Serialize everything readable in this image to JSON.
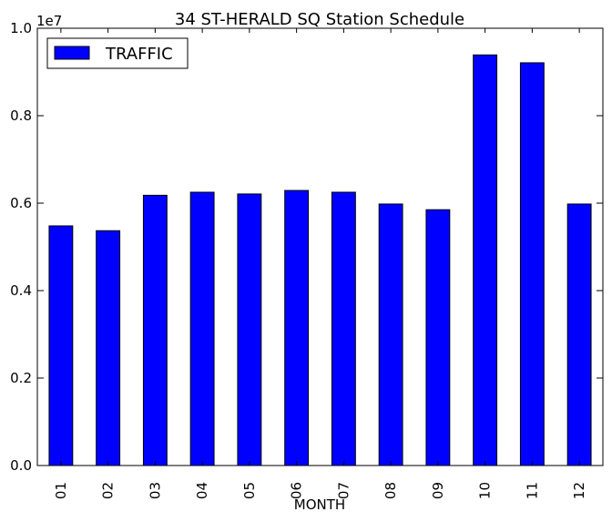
{
  "chart_data": {
    "type": "bar",
    "title": "34 ST-HERALD SQ Station Schedule",
    "xlabel": "MONTH",
    "ylabel": "",
    "offset_label": "1e7",
    "categories": [
      "01",
      "02",
      "03",
      "04",
      "05",
      "06",
      "07",
      "08",
      "09",
      "10",
      "11",
      "12"
    ],
    "y_ticks": [
      0.0,
      0.2,
      0.4,
      0.6,
      0.8,
      1.0
    ],
    "y_tick_labels": [
      "0.0",
      "0.2",
      "0.4",
      "0.6",
      "0.8",
      "1.0"
    ],
    "ylim": [
      0,
      10000000
    ],
    "grid": false,
    "legend_position": "top-left",
    "series": [
      {
        "name": "TRAFFIC",
        "color": "#0000ff",
        "values": [
          5480000,
          5370000,
          6180000,
          6250000,
          6210000,
          6290000,
          6250000,
          5980000,
          5850000,
          9390000,
          9210000,
          5980000
        ]
      }
    ]
  }
}
